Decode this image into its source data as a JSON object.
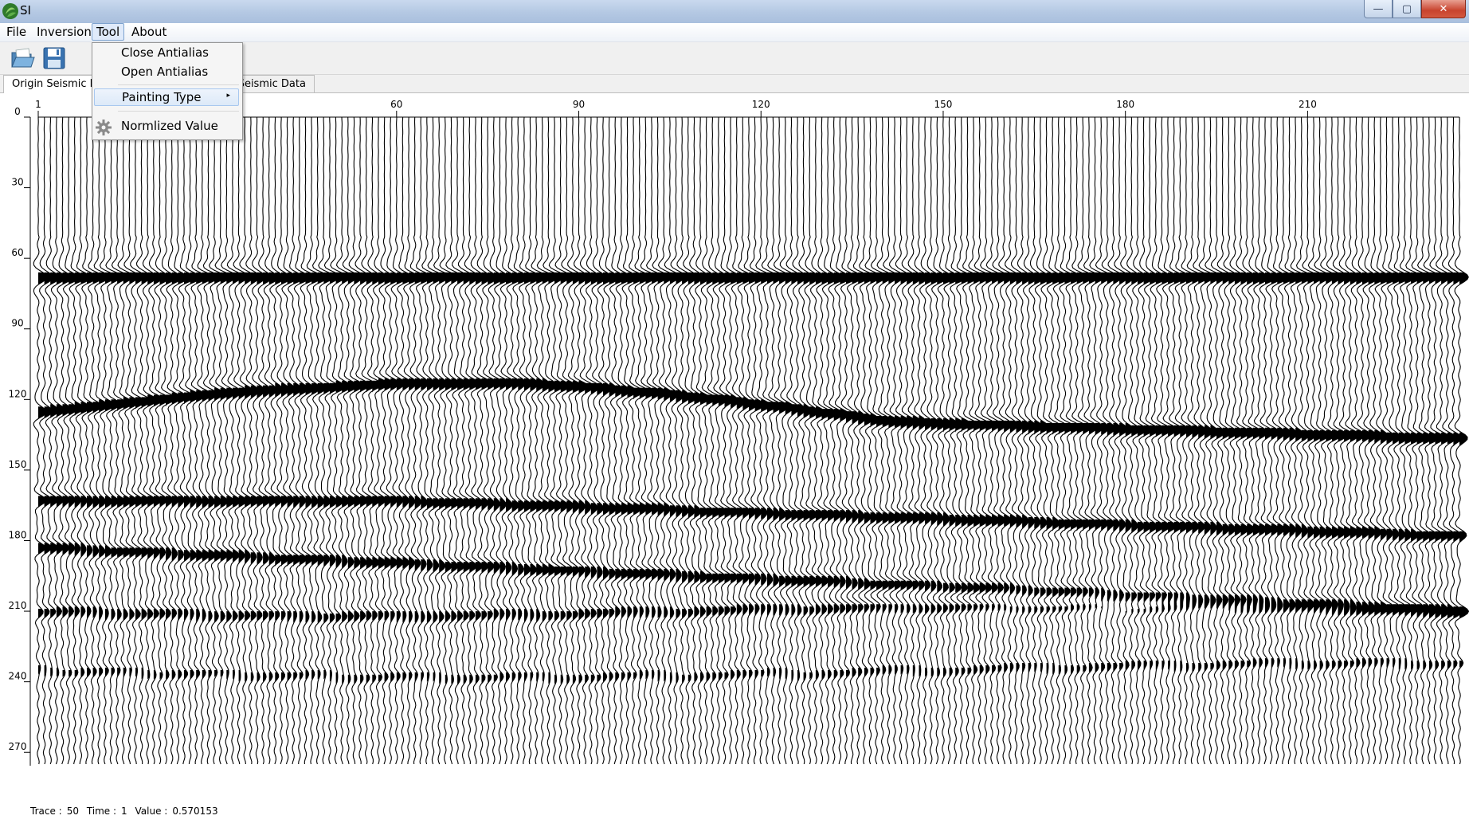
{
  "window": {
    "title": "SI",
    "min_icon": "minimize-icon",
    "max_icon": "maximize-icon",
    "close_icon": "close-icon",
    "min_glyph": "—",
    "max_glyph": "▢",
    "close_glyph": "✕"
  },
  "menubar": {
    "items": [
      "File",
      "Inversion",
      "Tool",
      "About"
    ],
    "open_item": "Tool"
  },
  "toolbar": {
    "buttons": [
      {
        "name": "open-folder-icon"
      },
      {
        "name": "save-icon"
      }
    ]
  },
  "tabs": [
    {
      "label": "Origin Seismic Data",
      "active": true
    },
    {
      "label": "Processed Seismic Data",
      "active": false
    }
  ],
  "tool_menu": {
    "items": [
      {
        "label": "Close Antialias"
      },
      {
        "label": "Open Antialias"
      },
      {
        "label": "Painting Type",
        "submenu": true,
        "arrow": "▸"
      },
      {
        "label": "Normlized Value",
        "icon": "gear-icon"
      }
    ]
  },
  "seismic_plot": {
    "x_ticks": [
      "1",
      "60",
      "90",
      "120",
      "150",
      "180",
      "210"
    ],
    "y_ticks": [
      "0",
      "30",
      "60",
      "90",
      "120",
      "150",
      "180",
      "210",
      "240",
      "270"
    ],
    "trace_count": 235,
    "time_max": 275
  },
  "status": {
    "trace_label": "Trace :",
    "trace_value": "50",
    "time_label": "Time :",
    "time_value": "1",
    "value_label": "Value :",
    "value_value": "0.570153"
  }
}
